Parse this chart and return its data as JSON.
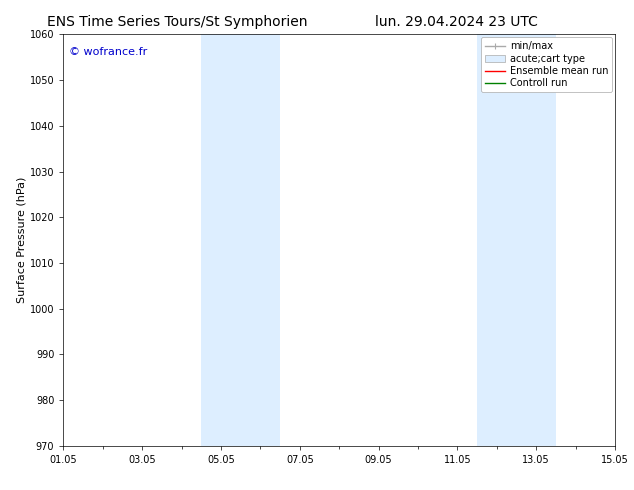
{
  "title_left": "ENS Time Series Tours/St Symphorien",
  "title_right": "lun. 29.04.2024 23 UTC",
  "ylabel": "Surface Pressure (hPa)",
  "ylim": [
    970,
    1060
  ],
  "yticks": [
    970,
    980,
    990,
    1000,
    1010,
    1020,
    1030,
    1040,
    1050,
    1060
  ],
  "xlim": [
    0,
    14
  ],
  "xtick_positions": [
    0,
    2,
    4,
    6,
    8,
    10,
    12,
    14
  ],
  "xtick_labels": [
    "01.05",
    "03.05",
    "05.05",
    "07.05",
    "09.05",
    "11.05",
    "13.05",
    "15.05"
  ],
  "watermark": "© wofrance.fr",
  "watermark_color": "#0000cc",
  "shaded_bands": [
    {
      "xmin": 3.5,
      "xmax": 5.5
    },
    {
      "xmin": 10.5,
      "xmax": 12.5
    }
  ],
  "shade_color": "#ddeeff",
  "shade_alpha": 1.0,
  "legend_entries": [
    {
      "label": "min/max",
      "color": "#aaaaaa",
      "lw": 1.0
    },
    {
      "label": "acute;cart type",
      "color": "#ddeeff",
      "lw": 6
    },
    {
      "label": "Ensemble mean run",
      "color": "red",
      "lw": 1.0
    },
    {
      "label": "Controll run",
      "color": "green",
      "lw": 1.0
    }
  ],
  "bg_color": "#ffffff",
  "title_fontsize": 10,
  "tick_fontsize": 7,
  "label_fontsize": 8,
  "legend_fontsize": 7
}
